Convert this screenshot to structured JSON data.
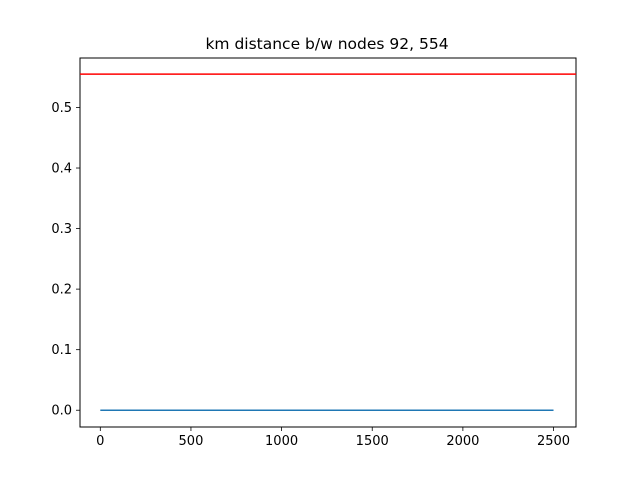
{
  "chart_data": {
    "type": "line",
    "title": "km distance b/w nodes 92, 554",
    "xlabel": "",
    "ylabel": "",
    "xlim": [
      -112,
      2624
    ],
    "ylim": [
      -0.0277,
      0.5817
    ],
    "x_ticks": [
      0,
      500,
      1000,
      1500,
      2000,
      2500
    ],
    "x_tick_labels": [
      "0",
      "500",
      "1000",
      "1500",
      "2000",
      "2500"
    ],
    "y_ticks": [
      0.0,
      0.1,
      0.2,
      0.3,
      0.4,
      0.5
    ],
    "y_tick_labels": [
      "0.0",
      "0.1",
      "0.2",
      "0.3",
      "0.4",
      "0.5"
    ],
    "grid": false,
    "legend": "none",
    "series": [
      {
        "x": [
          0,
          2500
        ],
        "y": [
          0.0,
          0.0
        ],
        "color": "#1f77b4"
      }
    ],
    "hlines": [
      {
        "y": 0.555,
        "color": "#ff0000"
      }
    ]
  }
}
